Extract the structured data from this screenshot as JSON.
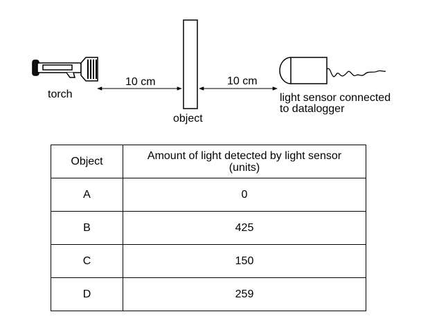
{
  "diagram": {
    "torch_label": "torch",
    "object_label": "object",
    "sensor_label_line1": "light sensor connected",
    "sensor_label_line2": "to datalogger",
    "distance_left": "10 cm",
    "distance_right": "10 cm"
  },
  "table": {
    "headers": {
      "col1": "Object",
      "col2_line1": "Amount of light detected by light sensor",
      "col2_line2": "(units)"
    },
    "rows": [
      {
        "object": "A",
        "amount": "0"
      },
      {
        "object": "B",
        "amount": "425"
      },
      {
        "object": "C",
        "amount": "150"
      },
      {
        "object": "D",
        "amount": "259"
      }
    ]
  }
}
